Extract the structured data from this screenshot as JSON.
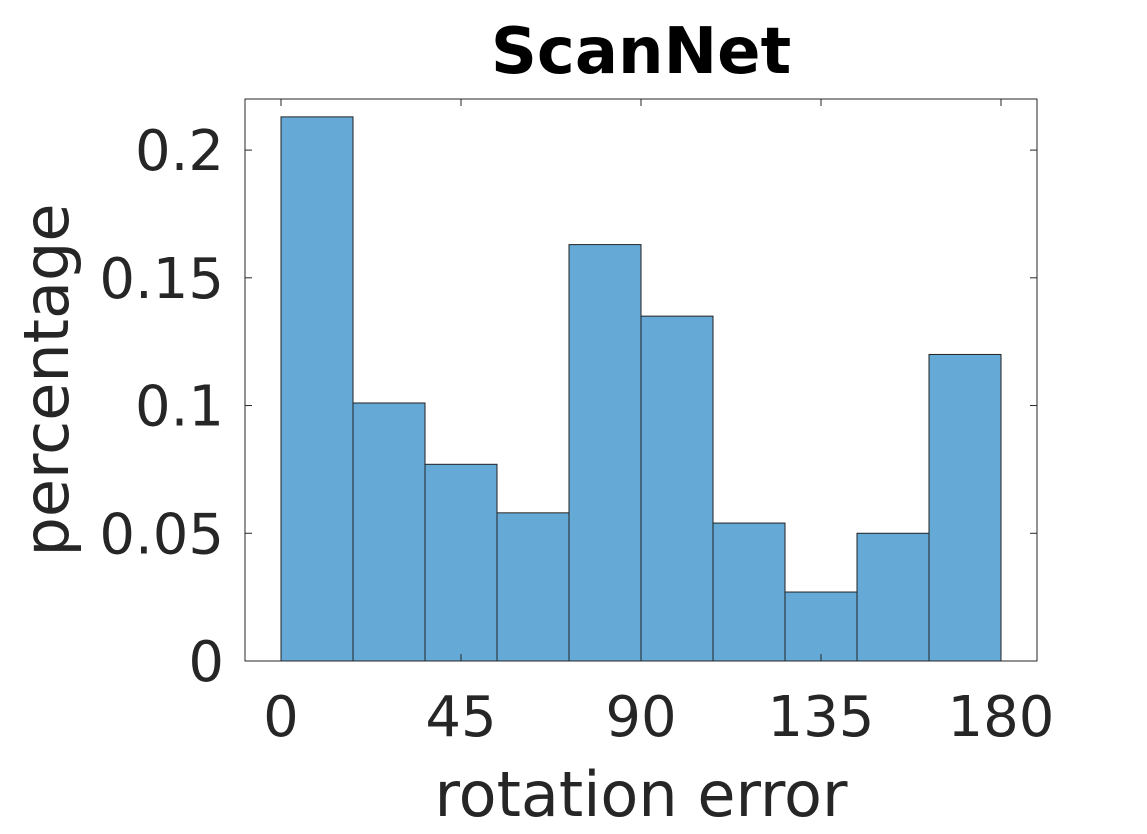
{
  "chart_data": {
    "type": "bar",
    "title": "ScanNet",
    "xlabel": "rotation error",
    "ylabel": "percentage",
    "bin_edges": [
      0,
      18,
      36,
      54,
      72,
      90,
      108,
      126,
      144,
      162,
      180
    ],
    "values": [
      0.213,
      0.101,
      0.077,
      0.058,
      0.163,
      0.135,
      0.054,
      0.027,
      0.05,
      0.12
    ],
    "xlim": [
      -9,
      189
    ],
    "ylim": [
      0,
      0.22
    ],
    "xticks": [
      0,
      45,
      90,
      135,
      180
    ],
    "xtick_labels": [
      "0",
      "45",
      "90",
      "135",
      "180"
    ],
    "yticks": [
      0,
      0.05,
      0.1,
      0.15,
      0.2
    ],
    "ytick_labels": [
      "0",
      "0.05",
      "0.1",
      "0.15",
      "0.2"
    ],
    "bar_color": "#65aad7",
    "edge_color": "#222222",
    "grid": false,
    "legend": "none"
  }
}
